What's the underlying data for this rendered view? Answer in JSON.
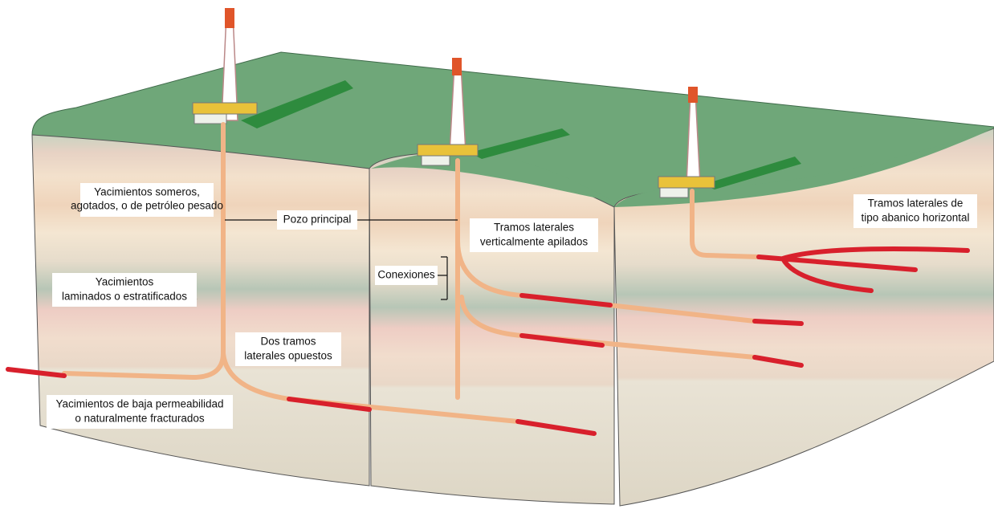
{
  "labels": {
    "shallow": {
      "lines": [
        "Yacimientos someros,",
        "agotados, o de petróleo pesado"
      ]
    },
    "main_well": {
      "lines": [
        "Pozo principal"
      ]
    },
    "stacked": {
      "lines": [
        "Tramos laterales",
        "verticalmente apilados"
      ]
    },
    "fan": {
      "lines": [
        "Tramos laterales de",
        "tipo abanico horizontal"
      ]
    },
    "connections": {
      "lines": [
        "Conexiones"
      ]
    },
    "laminated": {
      "lines": [
        "Yacimientos",
        "laminados o estratificados"
      ]
    },
    "opposed": {
      "lines": [
        "Dos tramos",
        "laterales opuestos"
      ]
    },
    "low_perm": {
      "lines": [
        "Yacimientos de baja permeabilidad",
        "o naturalmente fracturados"
      ]
    }
  }
}
